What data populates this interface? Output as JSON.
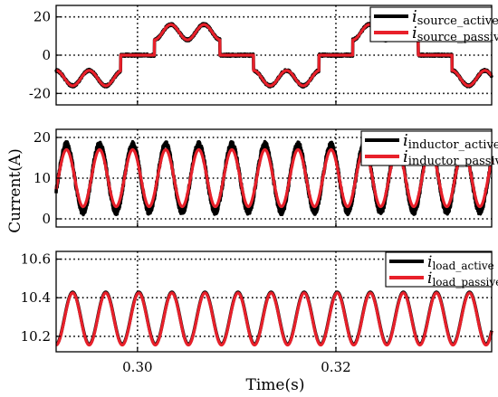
{
  "figure": {
    "ylabel": "Current(A)",
    "xlabel": "Time(s)"
  },
  "colors": {
    "active": "#000000",
    "passive": "#e8202a",
    "grid": "#000000"
  },
  "chart_data": [
    {
      "type": "line",
      "name": "source",
      "xlim": [
        0.2918,
        0.3357
      ],
      "ylim": [
        -26,
        26
      ],
      "yticks": [
        20,
        0,
        -20
      ],
      "xticks": [
        0.3,
        0.32
      ],
      "grid": true,
      "legend_position": "top-right",
      "series": [
        {
          "name": "i",
          "subscript": "source_active",
          "color": "#000000"
        },
        {
          "name": "i",
          "subscript": "source_passive",
          "color": "#e8202a"
        }
      ],
      "segments": [
        {
          "start": 0.2918,
          "end": 0.2983,
          "sign": -1
        },
        {
          "start": 0.2983,
          "end": 0.3017,
          "sign": 0
        },
        {
          "start": 0.3017,
          "end": 0.3083,
          "sign": 1
        },
        {
          "start": 0.3083,
          "end": 0.3117,
          "sign": 0
        },
        {
          "start": 0.3117,
          "end": 0.3183,
          "sign": -1
        },
        {
          "start": 0.3183,
          "end": 0.3217,
          "sign": 0
        },
        {
          "start": 0.3217,
          "end": 0.3283,
          "sign": 1
        },
        {
          "start": 0.3283,
          "end": 0.3317,
          "sign": 0
        },
        {
          "start": 0.3317,
          "end": 0.3357,
          "sign": -1
        }
      ],
      "offset": 8,
      "ripple_amplitude": 8,
      "ripple_frequency_hz": 300
    },
    {
      "type": "line",
      "name": "inductor",
      "xlim": [
        0.2918,
        0.3357
      ],
      "ylim": [
        -2,
        22
      ],
      "yticks": [
        20,
        10,
        0
      ],
      "xticks": [
        0.3,
        0.32
      ],
      "grid": true,
      "legend_position": "top-right",
      "series": [
        {
          "name": "i",
          "subscript": "inductor_active",
          "color": "#000000",
          "amplitude": 8.3,
          "noise": 0.7
        },
        {
          "name": "i",
          "subscript": "inductor_passive",
          "color": "#e8202a",
          "amplitude": 7.0,
          "noise": 0
        }
      ],
      "mean": 10,
      "frequency_hz": 300
    },
    {
      "type": "line",
      "name": "load",
      "xlim": [
        0.2918,
        0.3357
      ],
      "ylim": [
        10.12,
        10.64
      ],
      "yticks": [
        10.6,
        10.4,
        10.2
      ],
      "xticks": [
        0.3,
        0.32
      ],
      "grid": true,
      "legend_position": "top-right",
      "series": [
        {
          "name": "i",
          "subscript": "load_active",
          "color": "#000000"
        },
        {
          "name": "i",
          "subscript": "load_passive",
          "color": "#e8202a"
        }
      ],
      "mean": 10.29,
      "amplitude": 0.135,
      "frequency_hz": 300
    }
  ]
}
